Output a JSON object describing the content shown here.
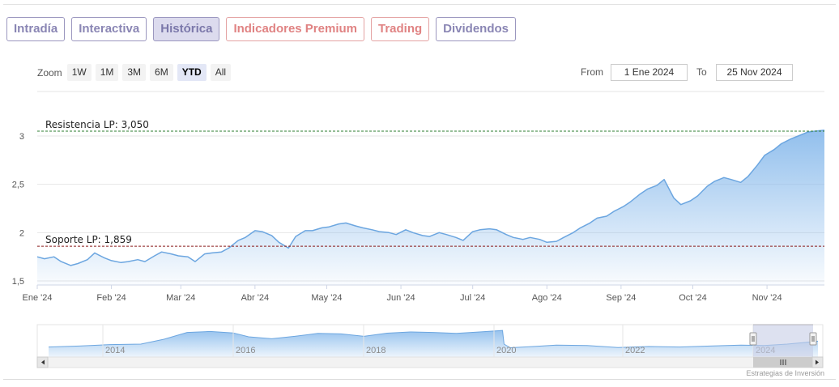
{
  "tabs": [
    {
      "label": "Intradía",
      "variant": "normal"
    },
    {
      "label": "Interactiva",
      "variant": "normal"
    },
    {
      "label": "Histórica",
      "variant": "active"
    },
    {
      "label": "Indicadores Premium",
      "variant": "red"
    },
    {
      "label": "Trading",
      "variant": "red"
    },
    {
      "label": "Dividendos",
      "variant": "normal"
    }
  ],
  "zoom": {
    "label": "Zoom",
    "buttons": [
      "1W",
      "1M",
      "3M",
      "6M",
      "YTD",
      "All"
    ],
    "selected": "YTD"
  },
  "range": {
    "from_label": "From",
    "from_value": "1 Ene 2024",
    "to_label": "To",
    "to_value": "25 Nov 2024"
  },
  "credit": "Estrategias de Inversión",
  "colors": {
    "line": "#6ca6e0",
    "fill_top": "#8cbcec",
    "resistance": "#2e7d32",
    "support": "#8b1a1a",
    "nav_mask": "#c6cde6"
  },
  "chart_data": {
    "type": "area",
    "x_start": "2024-01-01",
    "x_end": "2024-11-25",
    "ylim": [
      1.5,
      3.1
    ],
    "yticks": [
      1.5,
      2,
      2.5,
      3
    ],
    "ytick_labels": [
      "1,5",
      "2",
      "2,5",
      "3"
    ],
    "xtick_labels": [
      "Ene '24",
      "Feb '24",
      "Mar '24",
      "Abr '24",
      "May '24",
      "Jun '24",
      "Jul '24",
      "Ago '24",
      "Sep '24",
      "Oct '24",
      "Nov '24"
    ],
    "xtick_dates": [
      "2024-01-01",
      "2024-02-01",
      "2024-03-01",
      "2024-04-01",
      "2024-05-01",
      "2024-06-01",
      "2024-07-01",
      "2024-08-01",
      "2024-09-01",
      "2024-10-01",
      "2024-11-01"
    ],
    "series": [
      {
        "x": [
          "2024-01-01",
          "2024-01-04",
          "2024-01-08",
          "2024-01-11",
          "2024-01-15",
          "2024-01-18",
          "2024-01-22",
          "2024-01-25",
          "2024-01-29",
          "2024-02-01",
          "2024-02-05",
          "2024-02-08",
          "2024-02-12",
          "2024-02-15",
          "2024-02-19",
          "2024-02-22",
          "2024-02-26",
          "2024-02-29",
          "2024-03-04",
          "2024-03-07",
          "2024-03-11",
          "2024-03-14",
          "2024-03-18",
          "2024-03-21",
          "2024-03-25",
          "2024-03-28",
          "2024-04-01",
          "2024-04-04",
          "2024-04-08",
          "2024-04-11",
          "2024-04-15",
          "2024-04-18",
          "2024-04-22",
          "2024-04-25",
          "2024-04-29",
          "2024-05-02",
          "2024-05-06",
          "2024-05-09",
          "2024-05-13",
          "2024-05-16",
          "2024-05-20",
          "2024-05-23",
          "2024-05-27",
          "2024-05-30",
          "2024-06-03",
          "2024-06-06",
          "2024-06-10",
          "2024-06-13",
          "2024-06-17",
          "2024-06-20",
          "2024-06-24",
          "2024-06-27",
          "2024-07-01",
          "2024-07-04",
          "2024-07-08",
          "2024-07-11",
          "2024-07-15",
          "2024-07-18",
          "2024-07-22",
          "2024-07-25",
          "2024-07-29",
          "2024-08-01",
          "2024-08-05",
          "2024-08-08",
          "2024-08-12",
          "2024-08-15",
          "2024-08-19",
          "2024-08-22",
          "2024-08-26",
          "2024-08-29",
          "2024-09-02",
          "2024-09-05",
          "2024-09-09",
          "2024-09-12",
          "2024-09-16",
          "2024-09-19",
          "2024-09-23",
          "2024-09-26",
          "2024-09-30",
          "2024-10-03",
          "2024-10-07",
          "2024-10-10",
          "2024-10-14",
          "2024-10-17",
          "2024-10-21",
          "2024-10-24",
          "2024-10-28",
          "2024-10-31",
          "2024-11-04",
          "2024-11-07",
          "2024-11-11",
          "2024-11-14",
          "2024-11-18",
          "2024-11-21",
          "2024-11-25"
        ],
        "y": [
          1.75,
          1.73,
          1.75,
          1.7,
          1.66,
          1.68,
          1.72,
          1.79,
          1.74,
          1.71,
          1.69,
          1.7,
          1.72,
          1.7,
          1.76,
          1.8,
          1.78,
          1.76,
          1.75,
          1.7,
          1.78,
          1.79,
          1.8,
          1.84,
          1.92,
          1.95,
          2.02,
          2.01,
          1.97,
          1.9,
          1.84,
          1.96,
          2.02,
          2.02,
          2.05,
          2.06,
          2.09,
          2.1,
          2.07,
          2.05,
          2.03,
          2.01,
          2.0,
          1.98,
          2.03,
          2.0,
          1.97,
          1.96,
          2.0,
          1.98,
          1.95,
          1.92,
          2.01,
          2.03,
          2.04,
          2.03,
          1.98,
          1.95,
          1.93,
          1.95,
          1.93,
          1.9,
          1.91,
          1.95,
          2.0,
          2.05,
          2.1,
          2.15,
          2.17,
          2.22,
          2.27,
          2.32,
          2.4,
          2.45,
          2.49,
          2.55,
          2.36,
          2.29,
          2.33,
          2.38,
          2.48,
          2.53,
          2.57,
          2.55,
          2.52,
          2.58,
          2.7,
          2.8,
          2.86,
          2.92,
          2.97,
          3.0,
          3.04,
          3.05,
          3.06
        ]
      }
    ],
    "annotations": [
      {
        "label": "Resistencia LP: 3,050",
        "y": 3.05,
        "style": "dashed"
      },
      {
        "label": "Soporte LP: 1,859",
        "y": 1.859,
        "style": "dashed"
      }
    ],
    "navigator": {
      "year_labels": [
        "2014",
        "2016",
        "2018",
        "2020",
        "2022",
        "2024"
      ]
    }
  }
}
